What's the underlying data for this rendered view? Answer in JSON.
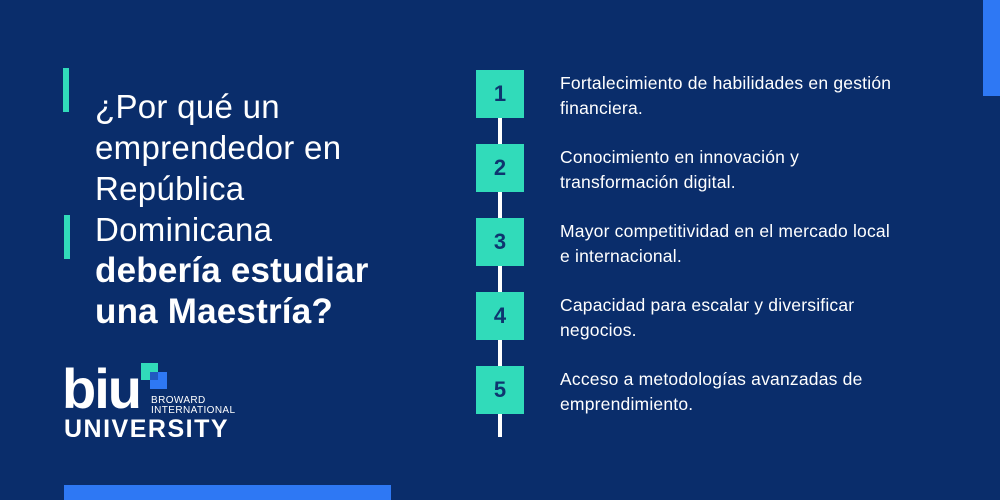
{
  "colors": {
    "background_navy": "#0a2d6b",
    "accent_teal": "#31dbba",
    "accent_blue": "#2e78f4",
    "text_white": "#ffffff",
    "step_number_navy": "#0e356f"
  },
  "heading": {
    "regular_lines": [
      "¿Por qué un",
      "emprendedor en",
      "República",
      "Dominicana"
    ],
    "bold_lines": [
      "debería estudiar",
      "una Maestría?"
    ]
  },
  "logo": {
    "acronym": "biu",
    "name_line1": "BROWARD",
    "name_line2": "INTERNATIONAL",
    "name_line3": "UNIVERSITY"
  },
  "steps": [
    {
      "number": "1",
      "line1": "Fortalecimiento de habilidades en gestión",
      "line2": "financiera."
    },
    {
      "number": "2",
      "line1": "Conocimiento en innovación y",
      "line2": "transformación digital."
    },
    {
      "number": "3",
      "line1": "Mayor competitividad en el mercado local",
      "line2": "e internacional."
    },
    {
      "number": "4",
      "line1": "Capacidad para escalar y diversificar",
      "line2": "negocios."
    },
    {
      "number": "5",
      "line1": "Acceso a metodologías avanzadas de",
      "line2": "emprendimiento."
    }
  ]
}
